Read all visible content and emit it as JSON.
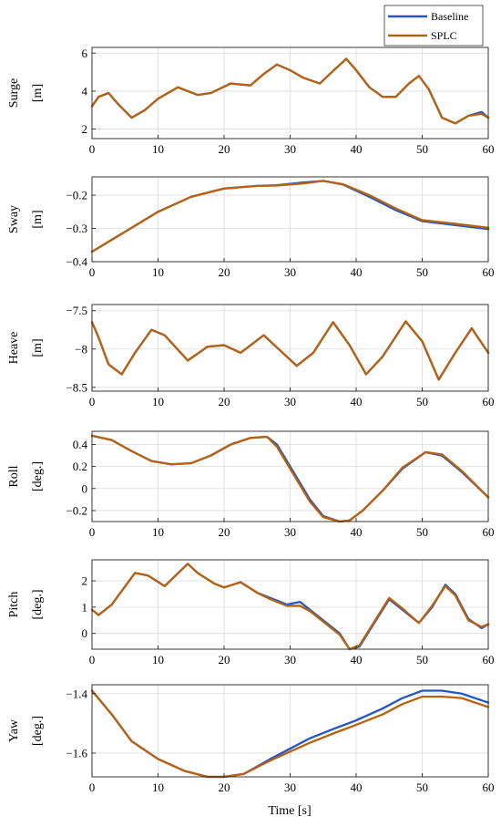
{
  "legend": {
    "items": [
      "Baseline",
      "SPLC"
    ],
    "placement": "top-right"
  },
  "xlabel": "Time [s]",
  "colors": {
    "baseline": "#2255c8",
    "splc": "#b8620f",
    "grid": "#dcdcdc"
  },
  "chart_data": [
    {
      "type": "line",
      "name": "Surge",
      "unit": "[m]",
      "xlim": [
        0,
        60
      ],
      "ylim": [
        1.5,
        6.3
      ],
      "yticks": [
        2,
        4,
        6
      ],
      "ytick_labels": [
        "2",
        "4",
        "6"
      ],
      "xticks": [
        0,
        10,
        20,
        30,
        40,
        50,
        60
      ],
      "x": [
        0,
        1,
        2.5,
        4,
        6,
        8,
        10,
        13,
        16,
        18,
        21,
        24,
        26,
        28,
        30,
        32,
        34.5,
        36,
        38.5,
        40,
        42,
        44,
        46,
        48,
        49.5,
        51,
        53,
        55,
        57,
        59,
        60
      ],
      "series": [
        {
          "name": "Baseline",
          "values": [
            3.2,
            3.7,
            3.9,
            3.3,
            2.6,
            3.0,
            3.6,
            4.2,
            3.8,
            3.9,
            4.4,
            4.3,
            4.9,
            5.4,
            5.1,
            4.7,
            4.4,
            4.9,
            5.7,
            5.1,
            4.2,
            3.7,
            3.7,
            4.4,
            4.8,
            4.1,
            2.6,
            2.3,
            2.7,
            2.9,
            2.6
          ]
        },
        {
          "name": "SPLC",
          "values": [
            3.2,
            3.7,
            3.9,
            3.3,
            2.6,
            3.0,
            3.6,
            4.2,
            3.8,
            3.9,
            4.4,
            4.3,
            4.9,
            5.4,
            5.1,
            4.7,
            4.4,
            4.9,
            5.7,
            5.1,
            4.2,
            3.7,
            3.7,
            4.4,
            4.8,
            4.1,
            2.6,
            2.3,
            2.7,
            2.8,
            2.6
          ]
        }
      ]
    },
    {
      "type": "line",
      "name": "Sway",
      "unit": "[m]",
      "xlim": [
        0,
        60
      ],
      "ylim": [
        -0.4,
        -0.145
      ],
      "yticks": [
        -0.4,
        -0.3,
        -0.2
      ],
      "ytick_labels": [
        "-0.4",
        "-0.3",
        "-0.2"
      ],
      "xticks": [
        0,
        10,
        20,
        30,
        40,
        50,
        60
      ],
      "x": [
        0,
        5,
        10,
        15,
        20,
        25,
        28,
        32,
        35,
        38,
        42,
        46,
        50,
        55,
        60
      ],
      "series": [
        {
          "name": "Baseline",
          "values": [
            -0.37,
            -0.31,
            -0.25,
            -0.205,
            -0.18,
            -0.172,
            -0.17,
            -0.162,
            -0.157,
            -0.168,
            -0.205,
            -0.245,
            -0.278,
            -0.29,
            -0.302
          ]
        },
        {
          "name": "SPLC",
          "values": [
            -0.37,
            -0.31,
            -0.25,
            -0.205,
            -0.18,
            -0.172,
            -0.171,
            -0.165,
            -0.157,
            -0.167,
            -0.2,
            -0.24,
            -0.275,
            -0.286,
            -0.298
          ]
        }
      ]
    },
    {
      "type": "line",
      "name": "Heave",
      "unit": "[m]",
      "xlim": [
        0,
        60
      ],
      "ylim": [
        -8.55,
        -7.42
      ],
      "yticks": [
        -8.5,
        -8,
        -7.5
      ],
      "ytick_labels": [
        "-8.5",
        "-8",
        "-7.5"
      ],
      "xticks": [
        0,
        10,
        20,
        30,
        40,
        50,
        60
      ],
      "x": [
        0,
        1,
        2.5,
        4.5,
        6.5,
        9,
        11,
        14.5,
        17.5,
        20,
        22.5,
        26,
        28,
        31,
        33.5,
        36.5,
        39,
        41.5,
        44,
        47.5,
        50,
        52.5,
        55,
        57.5,
        60
      ],
      "series": [
        {
          "name": "Baseline",
          "values": [
            -7.65,
            -7.85,
            -8.2,
            -8.33,
            -8.05,
            -7.75,
            -7.82,
            -8.15,
            -7.97,
            -7.95,
            -8.05,
            -7.82,
            -7.98,
            -8.22,
            -8.05,
            -7.65,
            -7.95,
            -8.33,
            -8.1,
            -7.64,
            -7.9,
            -8.4,
            -8.05,
            -7.73,
            -8.05
          ]
        },
        {
          "name": "SPLC",
          "values": [
            -7.65,
            -7.85,
            -8.2,
            -8.33,
            -8.05,
            -7.75,
            -7.82,
            -8.15,
            -7.97,
            -7.95,
            -8.05,
            -7.82,
            -7.98,
            -8.22,
            -8.05,
            -7.65,
            -7.95,
            -8.33,
            -8.1,
            -7.64,
            -7.9,
            -8.4,
            -8.05,
            -7.73,
            -8.05
          ]
        }
      ]
    },
    {
      "type": "line",
      "name": "Roll",
      "unit": "[deg.]",
      "xlim": [
        0,
        60
      ],
      "ylim": [
        -0.3,
        0.52
      ],
      "yticks": [
        -0.2,
        0,
        0.2,
        0.4
      ],
      "ytick_labels": [
        "-0.2",
        "0",
        "0.2",
        "0.4"
      ],
      "xticks": [
        0,
        10,
        20,
        30,
        40,
        50,
        60
      ],
      "x": [
        0,
        3,
        6,
        9,
        12,
        15,
        18,
        21,
        24,
        26.5,
        28,
        30,
        33,
        35,
        37.5,
        39,
        41,
        44,
        47,
        50.5,
        53,
        56,
        60
      ],
      "series": [
        {
          "name": "Baseline",
          "values": [
            0.48,
            0.44,
            0.34,
            0.25,
            0.22,
            0.23,
            0.3,
            0.4,
            0.46,
            0.47,
            0.4,
            0.2,
            -0.1,
            -0.25,
            -0.3,
            -0.29,
            -0.2,
            -0.02,
            0.18,
            0.33,
            0.3,
            0.15,
            -0.08
          ]
        },
        {
          "name": "SPLC",
          "values": [
            0.48,
            0.44,
            0.34,
            0.25,
            0.22,
            0.23,
            0.3,
            0.4,
            0.46,
            0.47,
            0.38,
            0.18,
            -0.12,
            -0.26,
            -0.3,
            -0.29,
            -0.2,
            -0.02,
            0.19,
            0.33,
            0.31,
            0.16,
            -0.08
          ]
        }
      ]
    },
    {
      "type": "line",
      "name": "Pitch",
      "unit": "[deg.]",
      "xlim": [
        0,
        60
      ],
      "ylim": [
        -0.6,
        2.8
      ],
      "yticks": [
        0,
        1,
        2
      ],
      "ytick_labels": [
        "0",
        "1",
        "2"
      ],
      "xticks": [
        0,
        10,
        20,
        30,
        40,
        50,
        60
      ],
      "x": [
        0,
        1,
        3,
        6.5,
        8.5,
        11,
        14.5,
        16,
        18.5,
        20,
        22.5,
        25,
        27,
        29.5,
        31.5,
        33,
        35,
        37.5,
        39,
        40.5,
        42.5,
        45,
        47,
        49.5,
        51.5,
        53.5,
        55,
        57,
        59,
        60
      ],
      "series": [
        {
          "name": "Baseline",
          "values": [
            0.9,
            0.7,
            1.1,
            2.3,
            2.2,
            1.8,
            2.65,
            2.3,
            1.9,
            1.75,
            1.95,
            1.55,
            1.35,
            1.1,
            1.2,
            0.9,
            0.5,
            0.0,
            -0.6,
            -0.5,
            0.3,
            1.3,
            0.9,
            0.4,
            1.0,
            1.85,
            1.5,
            0.55,
            0.2,
            0.35
          ]
        },
        {
          "name": "SPLC",
          "values": [
            0.9,
            0.7,
            1.1,
            2.3,
            2.2,
            1.8,
            2.65,
            2.3,
            1.9,
            1.75,
            1.95,
            1.55,
            1.3,
            1.05,
            1.05,
            0.85,
            0.45,
            -0.05,
            -0.6,
            -0.45,
            0.35,
            1.35,
            0.95,
            0.4,
            1.05,
            1.8,
            1.45,
            0.5,
            0.25,
            0.35
          ]
        }
      ]
    },
    {
      "type": "line",
      "name": "Yaw",
      "unit": "[deg.]",
      "xlim": [
        0,
        60
      ],
      "ylim": [
        -1.68,
        -1.37
      ],
      "yticks": [
        -1.6,
        -1.4
      ],
      "ytick_labels": [
        "-1.6",
        "-1.4"
      ],
      "xticks": [
        0,
        10,
        20,
        30,
        40,
        50,
        60
      ],
      "x": [
        0,
        3,
        6,
        10,
        14,
        17.5,
        20,
        23,
        27,
        30,
        33,
        37,
        40,
        44,
        47,
        50,
        53,
        56,
        60
      ],
      "series": [
        {
          "name": "Baseline",
          "values": [
            -1.39,
            -1.47,
            -1.56,
            -1.62,
            -1.66,
            -1.68,
            -1.68,
            -1.67,
            -1.62,
            -1.585,
            -1.55,
            -1.515,
            -1.49,
            -1.45,
            -1.415,
            -1.39,
            -1.39,
            -1.4,
            -1.43
          ]
        },
        {
          "name": "SPLC",
          "values": [
            -1.39,
            -1.47,
            -1.56,
            -1.62,
            -1.66,
            -1.68,
            -1.68,
            -1.67,
            -1.625,
            -1.595,
            -1.565,
            -1.53,
            -1.505,
            -1.47,
            -1.435,
            -1.41,
            -1.41,
            -1.415,
            -1.445
          ]
        }
      ]
    }
  ]
}
